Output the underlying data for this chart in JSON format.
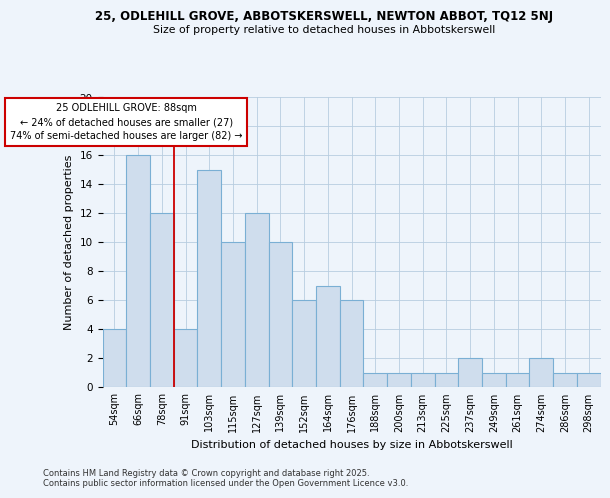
{
  "title1": "25, ODLEHILL GROVE, ABBOTSKERSWELL, NEWTON ABBOT, TQ12 5NJ",
  "title2": "Size of property relative to detached houses in Abbotskerswell",
  "xlabel": "Distribution of detached houses by size in Abbotskerswell",
  "ylabel": "Number of detached properties",
  "bin_labels": [
    "54sqm",
    "66sqm",
    "78sqm",
    "91sqm",
    "103sqm",
    "115sqm",
    "127sqm",
    "139sqm",
    "152sqm",
    "164sqm",
    "176sqm",
    "188sqm",
    "200sqm",
    "213sqm",
    "225sqm",
    "237sqm",
    "249sqm",
    "261sqm",
    "274sqm",
    "286sqm",
    "298sqm"
  ],
  "bar_heights": [
    4,
    16,
    12,
    4,
    15,
    10,
    12,
    10,
    6,
    7,
    6,
    1,
    1,
    1,
    1,
    2,
    1,
    1,
    2,
    1,
    1
  ],
  "bar_color": "#cfdded",
  "bar_edge_color": "#7aafd4",
  "vline_color": "#cc0000",
  "ylim": [
    0,
    20
  ],
  "yticks": [
    0,
    2,
    4,
    6,
    8,
    10,
    12,
    14,
    16,
    18,
    20
  ],
  "annotation_title": "25 ODLEHILL GROVE: 88sqm",
  "annotation_line1": "← 24% of detached houses are smaller (27)",
  "annotation_line2": "74% of semi-detached houses are larger (82) →",
  "annotation_box_color": "#ffffff",
  "annotation_box_edge": "#cc0000",
  "footer1": "Contains HM Land Registry data © Crown copyright and database right 2025.",
  "footer2": "Contains public sector information licensed under the Open Government Licence v3.0.",
  "bg_color": "#eef4fb",
  "grid_color": "#b8cde0"
}
